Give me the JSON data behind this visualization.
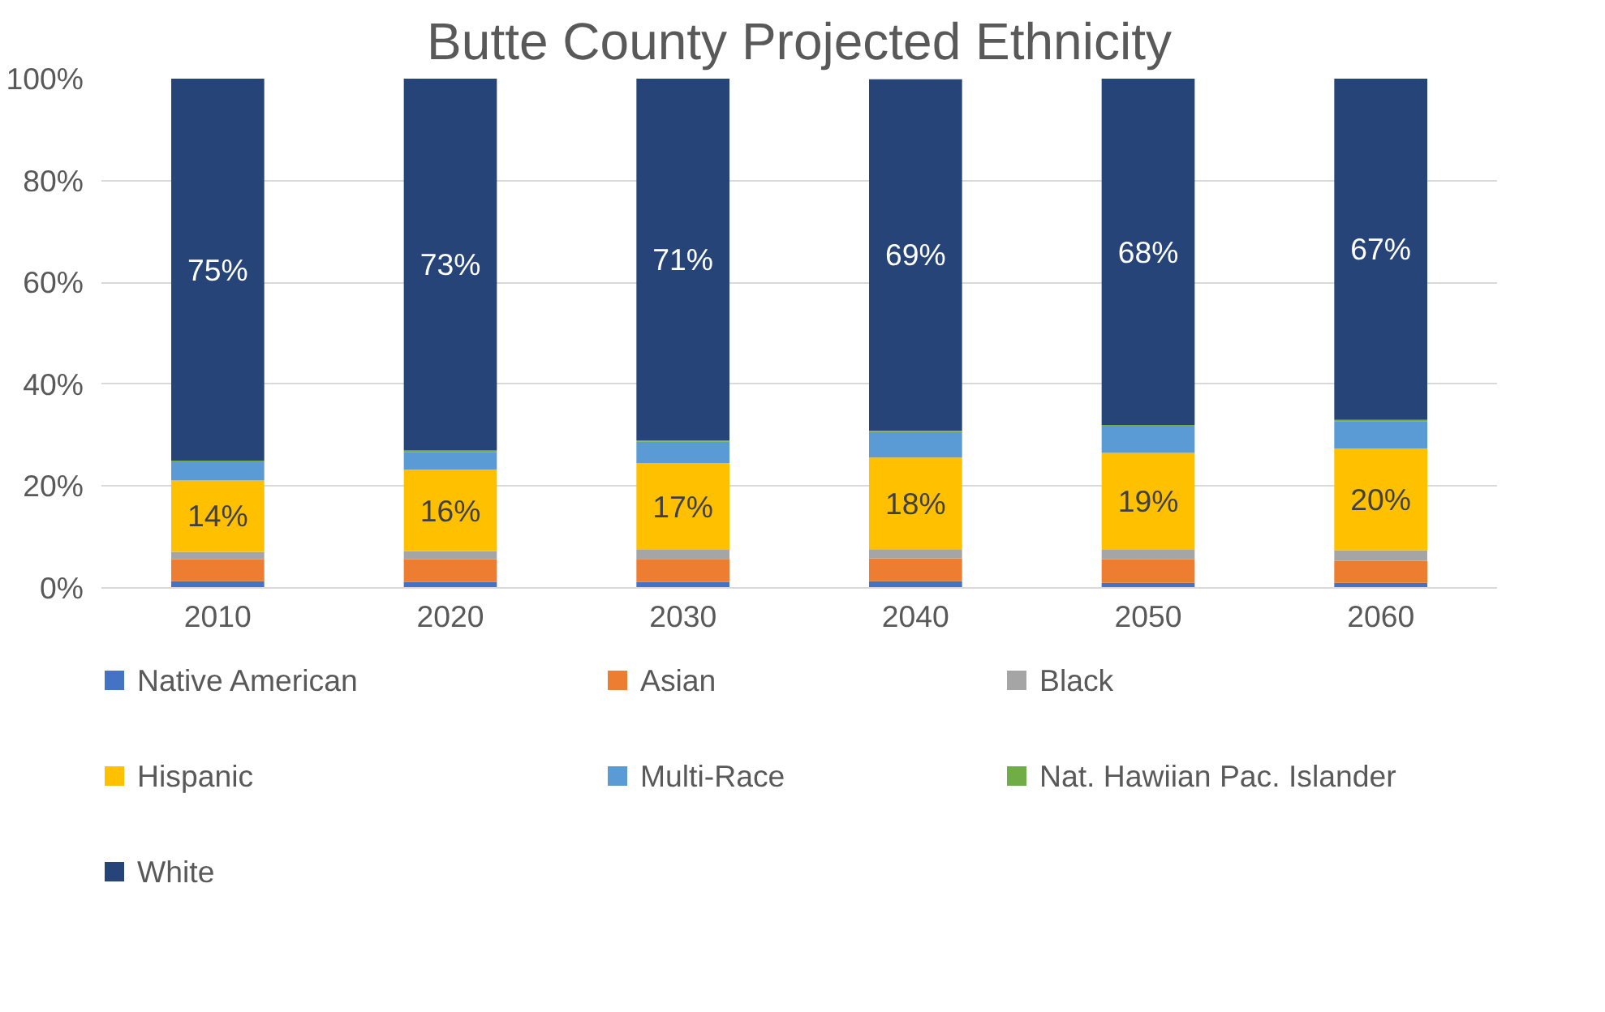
{
  "chart_data": {
    "type": "bar",
    "stacked": true,
    "title": "Butte County Projected Ethnicity",
    "categories": [
      "2010",
      "2020",
      "2030",
      "2040",
      "2050",
      "2060"
    ],
    "series": [
      {
        "name": "Native American",
        "color": "#4472c4",
        "values": [
          1.3,
          1.2,
          1.2,
          1.3,
          1.0,
          1.0
        ]
      },
      {
        "name": "Asian",
        "color": "#ed7d31",
        "values": [
          4.3,
          4.4,
          4.5,
          4.5,
          4.6,
          4.3
        ]
      },
      {
        "name": "Black",
        "color": "#a5a5a5",
        "values": [
          1.5,
          1.6,
          1.8,
          1.8,
          1.9,
          2.1
        ]
      },
      {
        "name": "Hispanic",
        "color": "#ffc000",
        "values": [
          14,
          16,
          17,
          18,
          19,
          20
        ],
        "value_labels": [
          "14%",
          "16%",
          "17%",
          "18%",
          "19%",
          "20%"
        ]
      },
      {
        "name": "Multi-Race",
        "color": "#5b9bd5",
        "values": [
          3.6,
          3.5,
          4.2,
          5.0,
          5.2,
          5.3
        ]
      },
      {
        "name": "Nat. Hawiian Pac. Islander",
        "color": "#70ad47",
        "values": [
          0.3,
          0.3,
          0.3,
          0.3,
          0.3,
          0.3
        ]
      },
      {
        "name": "White",
        "color": "#264478",
        "values": [
          75,
          73,
          71,
          69,
          68,
          67
        ],
        "value_labels": [
          "75%",
          "73%",
          "71%",
          "69%",
          "68%",
          "67%"
        ]
      }
    ],
    "ylim": [
      0,
      100
    ],
    "yticks": [
      {
        "value": 0,
        "label": "0%"
      },
      {
        "value": 20,
        "label": "20%"
      },
      {
        "value": 40,
        "label": "40%"
      },
      {
        "value": 60,
        "label": "60%"
      },
      {
        "value": 80,
        "label": "80%"
      },
      {
        "value": 100,
        "label": "100%"
      }
    ],
    "grid": "y",
    "legend": "bottom"
  }
}
